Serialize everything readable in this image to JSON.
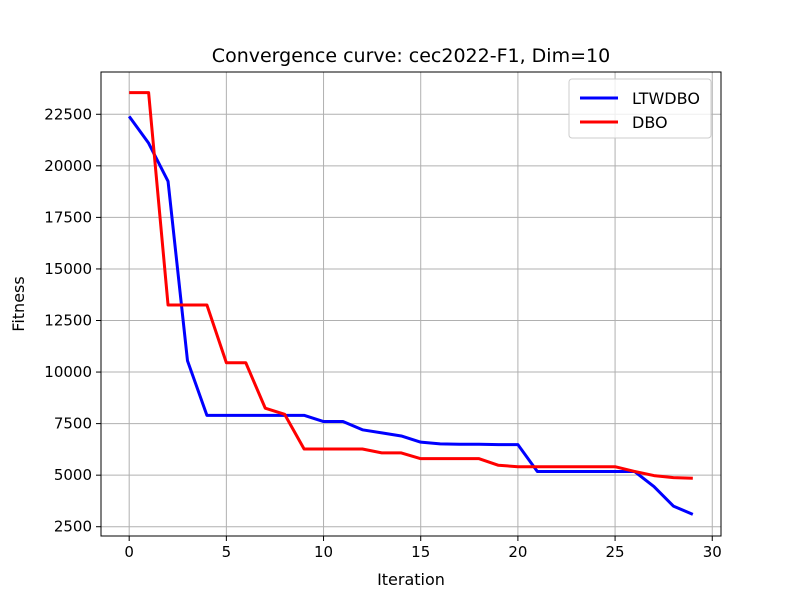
{
  "chart_data": {
    "type": "line",
    "title": "Convergence curve:  cec2022-F1, Dim=10",
    "xlabel": "Iteration",
    "ylabel": "Fitness",
    "xlim": [
      -1.45,
      30.45
    ],
    "ylim": [
      2050,
      24550
    ],
    "xticks": [
      0,
      5,
      10,
      15,
      20,
      25,
      30
    ],
    "yticks": [
      2500,
      5000,
      7500,
      10000,
      12500,
      15000,
      17500,
      20000,
      22500
    ],
    "grid": true,
    "legend_position": "top-right",
    "x": [
      0,
      1,
      2,
      3,
      4,
      5,
      6,
      7,
      8,
      9,
      10,
      11,
      12,
      13,
      14,
      15,
      16,
      17,
      18,
      19,
      20,
      21,
      22,
      23,
      24,
      25,
      26,
      27,
      28,
      29
    ],
    "series": [
      {
        "name": "LTWDBO",
        "color": "#0000ff",
        "values": [
          22400,
          21100,
          19250,
          10550,
          7900,
          7900,
          7900,
          7900,
          7900,
          7900,
          7600,
          7600,
          7200,
          7050,
          6900,
          6600,
          6520,
          6500,
          6500,
          6480,
          6480,
          5180,
          5180,
          5180,
          5180,
          5180,
          5180,
          4450,
          3500,
          3100
        ]
      },
      {
        "name": "DBO",
        "color": "#ff0000",
        "values": [
          23550,
          23550,
          13250,
          13250,
          13250,
          10450,
          10450,
          8250,
          7950,
          6270,
          6270,
          6270,
          6270,
          6080,
          6080,
          5800,
          5800,
          5800,
          5800,
          5480,
          5410,
          5410,
          5410,
          5410,
          5410,
          5410,
          5180,
          4980,
          4880,
          4850
        ]
      }
    ]
  }
}
